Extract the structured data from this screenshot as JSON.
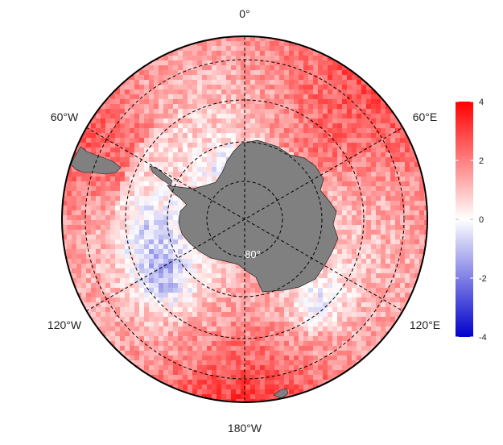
{
  "map": {
    "projection": "south-polar-stereographic",
    "longitude_labels": {
      "top": "0°",
      "upper_left": "60°W",
      "upper_right": "60°E",
      "lower_left": "120°W",
      "lower_right": "120°E",
      "bottom": "180°W"
    },
    "latitude_label": "80°",
    "land_color": "#808080",
    "field": "anomaly (diverging red–blue), strongest positive values in outer ring near 180° and 0°–60°E sectors, negative patches near 60°W–120°W"
  },
  "colorbar": {
    "ticks": [
      "4",
      "2",
      "0",
      "-2",
      "-4"
    ],
    "min": -4,
    "max": 4,
    "colors": {
      "high": "#ff0000",
      "mid": "#ffffff",
      "low": "#0000cc"
    }
  }
}
